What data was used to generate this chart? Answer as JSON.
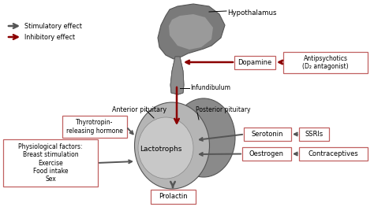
{
  "dark_gray": "#555555",
  "red": "#8b0000",
  "box_edge": "#c06060",
  "legend": {
    "stimulatory": "Stimulatory effect",
    "inhibitory": "Inhibitory effect"
  },
  "labels": {
    "hypothalamus": "Hypothalamus",
    "dopamine": "Dopamine",
    "antipsychotics": "Antipsychotics\n(D₂ antagonist)",
    "infundibulum": "Infundibulum",
    "anterior_pituitary": "Anterior pituitary",
    "posterior_pituitary": "Posterior pituitary",
    "lactotrophs": "Lactotrophs",
    "thyrotropin": "Thyrotropin-\nreleasing hormone",
    "physiological": "Physiological factors:\nBreast stimulation\nExercise\nFood intake\nSex",
    "serotonin": "Serotonin",
    "ssris": "SSRIs",
    "oestrogen": "Oestrogen",
    "contraceptives": "Contraceptives",
    "prolactin": "Prolactin"
  }
}
